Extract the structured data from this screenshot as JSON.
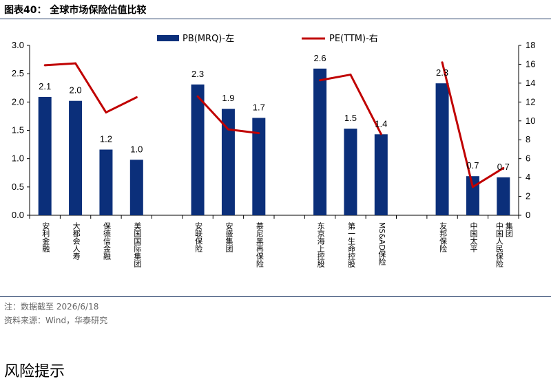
{
  "header": {
    "title": "图表40：  全球市场保险估值比较"
  },
  "notes": {
    "note": "注：数据截至 2026/6/18",
    "source": "资料来源：Wind，华泰研究"
  },
  "footer": {
    "section_title": "风险提示"
  },
  "colors": {
    "bar": "#0b2f7a",
    "line": "#c00000",
    "rule": "#1f3864"
  },
  "chart_data": {
    "type": "bar",
    "categories": [
      "安利金融",
      "大都会人寿",
      "保德信金融",
      "美国国际集团",
      "安联保险",
      "安盛集团",
      "慕尼黑再保险",
      "东京海上控股",
      "第一生命控股",
      "MS&AD保险",
      "友邦保险",
      "中国太平",
      "中国人民保险集团"
    ],
    "category_lines": [
      [
        "安利金融"
      ],
      [
        "大都会人寿"
      ],
      [
        "保德信金融"
      ],
      [
        "美国国际集团"
      ],
      [
        "安联保险"
      ],
      [
        "安盛集团"
      ],
      [
        "慕尼黑再保险"
      ],
      [
        "东京海上控股"
      ],
      [
        "第一生命控股"
      ],
      [
        "MS&AD保险"
      ],
      [
        "友邦保险"
      ],
      [
        "中国太平"
      ],
      [
        "中国人民保险",
        "集团"
      ]
    ],
    "groups": [
      [
        0,
        1,
        2,
        3
      ],
      [
        4,
        5,
        6
      ],
      [
        7,
        8,
        9
      ],
      [
        10,
        11,
        12
      ]
    ],
    "series": [
      {
        "name": "PB(MRQ)-左",
        "type": "bar",
        "axis": "left",
        "values": [
          2.1,
          2.0,
          1.2,
          1.0,
          2.3,
          1.9,
          1.7,
          2.6,
          1.5,
          1.4,
          2.3,
          0.7,
          0.7
        ],
        "bar_values": [
          2.09,
          2.02,
          1.16,
          0.98,
          2.31,
          1.88,
          1.72,
          2.59,
          1.53,
          1.43,
          2.33,
          0.69,
          0.67
        ]
      },
      {
        "name": "PE(TTM)-右",
        "type": "line",
        "axis": "right",
        "values": [
          15.9,
          16.1,
          10.9,
          12.5,
          12.6,
          9.1,
          8.7,
          14.3,
          14.9,
          8.6,
          16.2,
          3.0,
          5.0
        ]
      }
    ],
    "y_left": {
      "min": 0,
      "max": 3.0,
      "ticks": [
        "0.0",
        "0.5",
        "1.0",
        "1.5",
        "2.0",
        "2.5",
        "3.0"
      ]
    },
    "y_right": {
      "min": 0,
      "max": 18,
      "ticks": [
        "0",
        "2",
        "4",
        "6",
        "8",
        "10",
        "12",
        "14",
        "16",
        "18"
      ]
    },
    "legend": {
      "position": "top",
      "bar_label": "PB(MRQ)-左",
      "line_label": "PE(TTM)-右"
    },
    "data_labels": [
      "2.1",
      "2.0",
      "1.2",
      "1.0",
      "2.3",
      "1.9",
      "1.7",
      "2.6",
      "1.5",
      "1.4",
      "2.3",
      "0.7",
      "0.7"
    ],
    "grid": false
  }
}
